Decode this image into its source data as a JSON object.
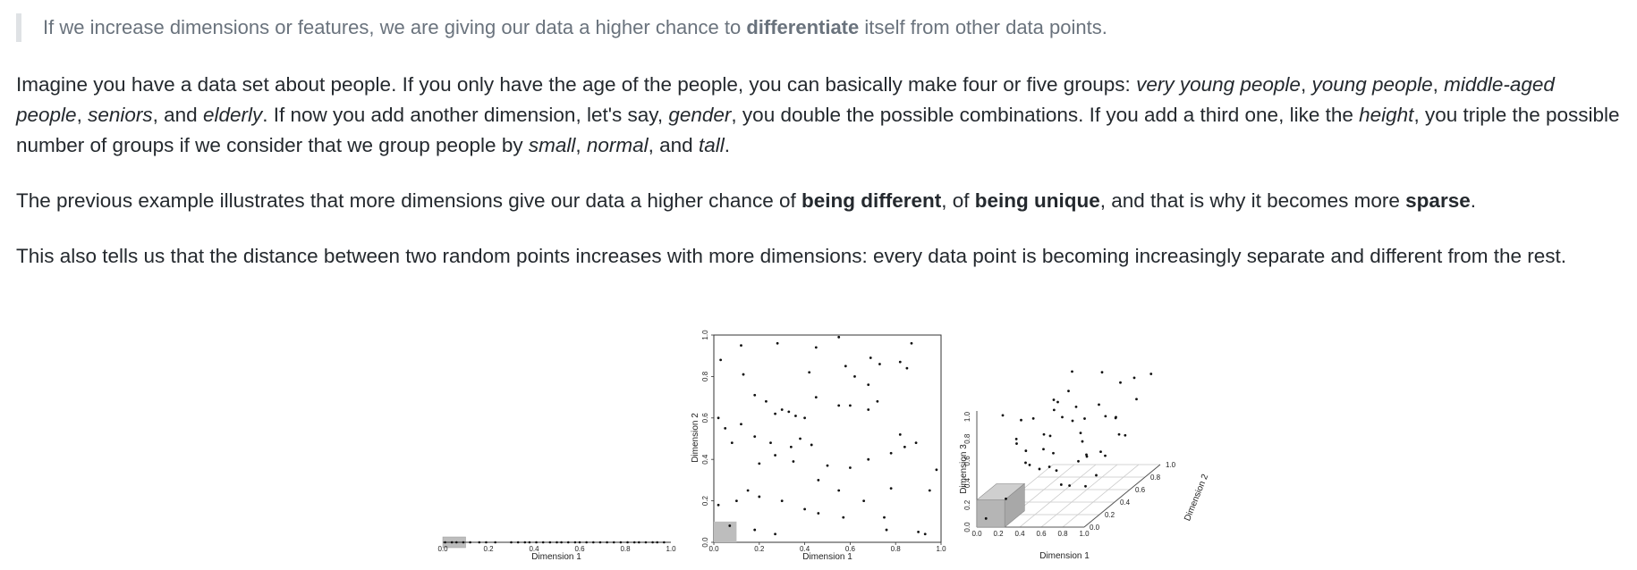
{
  "quote": {
    "before": "If we increase dimensions or features, we are giving our data a higher chance to ",
    "bold": "differentiate",
    "after": " itself from other data points."
  },
  "para1": {
    "t1": "Imagine you have a data set about people. If you only have the age of the people, you can basically make four or five groups: ",
    "i1": "very young people",
    "t2": ", ",
    "i2": "young people",
    "t3": ", ",
    "i3": "middle-aged people",
    "t4": ", ",
    "i4": "seniors",
    "t5": ", and ",
    "i5": "elderly",
    "t6": ". If now you add another dimension, let's say, ",
    "i6": "gender",
    "t7": ", you double the possible combinations. If you add a third one, like the ",
    "i7": "height",
    "t8": ", you triple the possible number of groups if we consider that we group people by ",
    "i8": "small",
    "t9": ", ",
    "i9": "normal",
    "t10": ", and ",
    "i10": "tall",
    "t11": "."
  },
  "para2": {
    "t1": "The previous example illustrates that more dimensions give our data a higher chance of ",
    "b1": "being different",
    "t2": ", of ",
    "b2": "being unique",
    "t3": ", and that is why it becomes more ",
    "b3": "sparse",
    "t4": "."
  },
  "para3": {
    "text": "This also tells us that the distance between two random points increases with more dimensions: every data point is becoming increasingly separate and different from the rest."
  },
  "chart_data": [
    {
      "type": "scatter",
      "xlabel": "Dimension 1",
      "ylabel": "",
      "xlim": [
        0,
        1
      ],
      "xticks": [
        "0.0",
        "0.2",
        "0.4",
        "0.6",
        "0.8",
        "1.0"
      ],
      "highlight": {
        "x": [
          0,
          0.1
        ]
      },
      "x": [
        0.01,
        0.04,
        0.06,
        0.09,
        0.12,
        0.16,
        0.19,
        0.23,
        0.3,
        0.33,
        0.36,
        0.38,
        0.41,
        0.44,
        0.47,
        0.5,
        0.52,
        0.55,
        0.58,
        0.6,
        0.63,
        0.66,
        0.69,
        0.72,
        0.75,
        0.78,
        0.81,
        0.84,
        0.86,
        0.89,
        0.92,
        0.94,
        0.97
      ]
    },
    {
      "type": "scatter",
      "xlabel": "Dimension 1",
      "ylabel": "Dimension 2",
      "xlim": [
        0,
        1
      ],
      "ylim": [
        0,
        1
      ],
      "xticks": [
        "0.0",
        "0.2",
        "0.4",
        "0.6",
        "0.8",
        "1.0"
      ],
      "yticks": [
        "0.0",
        "0.2",
        "0.4",
        "0.6",
        "0.8",
        "1.0"
      ],
      "highlight": {
        "x": [
          0,
          0.1
        ],
        "y": [
          0,
          0.1
        ]
      },
      "points": [
        [
          0.03,
          0.88
        ],
        [
          0.12,
          0.95
        ],
        [
          0.28,
          0.96
        ],
        [
          0.45,
          0.94
        ],
        [
          0.55,
          0.99
        ],
        [
          0.69,
          0.89
        ],
        [
          0.73,
          0.86
        ],
        [
          0.82,
          0.87
        ],
        [
          0.87,
          0.96
        ],
        [
          0.85,
          0.84
        ],
        [
          0.13,
          0.81
        ],
        [
          0.58,
          0.85
        ],
        [
          0.62,
          0.8
        ],
        [
          0.42,
          0.82
        ],
        [
          0.68,
          0.76
        ],
        [
          0.18,
          0.71
        ],
        [
          0.23,
          0.68
        ],
        [
          0.27,
          0.62
        ],
        [
          0.3,
          0.64
        ],
        [
          0.33,
          0.63
        ],
        [
          0.36,
          0.61
        ],
        [
          0.4,
          0.6
        ],
        [
          0.45,
          0.7
        ],
        [
          0.55,
          0.66
        ],
        [
          0.6,
          0.66
        ],
        [
          0.68,
          0.64
        ],
        [
          0.72,
          0.68
        ],
        [
          0.12,
          0.57
        ],
        [
          0.18,
          0.51
        ],
        [
          0.25,
          0.48
        ],
        [
          0.34,
          0.46
        ],
        [
          0.38,
          0.5
        ],
        [
          0.43,
          0.47
        ],
        [
          0.02,
          0.6
        ],
        [
          0.05,
          0.55
        ],
        [
          0.08,
          0.48
        ],
        [
          0.2,
          0.38
        ],
        [
          0.27,
          0.42
        ],
        [
          0.35,
          0.39
        ],
        [
          0.46,
          0.3
        ],
        [
          0.5,
          0.37
        ],
        [
          0.6,
          0.36
        ],
        [
          0.68,
          0.4
        ],
        [
          0.82,
          0.52
        ],
        [
          0.84,
          0.46
        ],
        [
          0.89,
          0.48
        ],
        [
          0.78,
          0.43
        ],
        [
          0.15,
          0.25
        ],
        [
          0.2,
          0.22
        ],
        [
          0.3,
          0.2
        ],
        [
          0.4,
          0.16
        ],
        [
          0.46,
          0.14
        ],
        [
          0.55,
          0.25
        ],
        [
          0.66,
          0.2
        ],
        [
          0.78,
          0.26
        ],
        [
          0.95,
          0.25
        ],
        [
          0.02,
          0.18
        ],
        [
          0.07,
          0.08
        ],
        [
          0.18,
          0.06
        ],
        [
          0.27,
          0.04
        ],
        [
          0.57,
          0.12
        ],
        [
          0.76,
          0.06
        ],
        [
          0.9,
          0.05
        ],
        [
          0.93,
          0.04
        ],
        [
          0.75,
          0.12
        ],
        [
          0.1,
          0.2
        ],
        [
          0.98,
          0.35
        ]
      ]
    },
    {
      "type": "scatter",
      "xlabel": "Dimension 1",
      "ylabel": "Dimension 3",
      "zlabel": "Dimension 2",
      "xticks": [
        "0.0",
        "0.2",
        "0.4",
        "0.6",
        "0.8",
        "1.0"
      ],
      "yticks": [
        "0.0",
        "0.2",
        "0.4",
        "0.6",
        "0.8",
        "1.0"
      ],
      "zticks": [
        "0.0",
        "0.2",
        "0.4",
        "0.6",
        "0.8",
        "1.0"
      ],
      "highlight": {
        "x": [
          0,
          0.1
        ],
        "y": [
          0,
          0.1
        ],
        "z": [
          0,
          0.1
        ]
      },
      "points": [
        [
          0.1,
          0.2,
          0.9
        ],
        [
          0.2,
          0.3,
          0.8
        ],
        [
          0.3,
          0.1,
          0.7
        ],
        [
          0.4,
          0.5,
          0.85
        ],
        [
          0.5,
          0.6,
          0.75
        ],
        [
          0.6,
          0.8,
          0.95
        ],
        [
          0.7,
          0.9,
          0.8
        ],
        [
          0.8,
          0.7,
          0.6
        ],
        [
          0.9,
          0.8,
          0.9
        ],
        [
          0.2,
          0.6,
          0.5
        ],
        [
          0.3,
          0.7,
          0.6
        ],
        [
          0.4,
          0.4,
          0.6
        ],
        [
          0.5,
          0.3,
          0.5
        ],
        [
          0.6,
          0.2,
          0.4
        ],
        [
          0.7,
          0.4,
          0.55
        ],
        [
          0.8,
          0.5,
          0.4
        ],
        [
          0.9,
          0.3,
          0.3
        ],
        [
          0.1,
          0.5,
          0.3
        ],
        [
          0.2,
          0.1,
          0.2
        ],
        [
          0.3,
          0.4,
          0.3
        ],
        [
          0.4,
          0.8,
          0.4
        ],
        [
          0.5,
          0.9,
          0.6
        ],
        [
          0.6,
          0.6,
          0.3
        ],
        [
          0.7,
          0.7,
          0.25
        ],
        [
          0.8,
          0.3,
          0.2
        ],
        [
          0.9,
          0.6,
          0.5
        ],
        [
          0.15,
          0.8,
          0.7
        ],
        [
          0.25,
          0.9,
          0.9
        ],
        [
          0.35,
          0.2,
          0.45
        ],
        [
          0.45,
          0.7,
          0.2
        ],
        [
          0.55,
          0.1,
          0.65
        ],
        [
          0.65,
          0.5,
          0.7
        ],
        [
          0.75,
          0.2,
          0.85
        ],
        [
          0.85,
          0.9,
          0.65
        ],
        [
          0.95,
          0.1,
          0.6
        ],
        [
          0.05,
          0.05,
          0.05
        ],
        [
          0.12,
          0.35,
          0.6
        ],
        [
          0.62,
          0.95,
          0.45
        ],
        [
          0.78,
          0.85,
          0.35
        ],
        [
          0.42,
          0.15,
          0.9
        ],
        [
          0.33,
          0.55,
          0.75
        ],
        [
          0.88,
          0.45,
          0.75
        ],
        [
          0.58,
          0.4,
          0.15
        ],
        [
          0.18,
          0.7,
          0.15
        ],
        [
          0.68,
          0.15,
          0.3
        ],
        [
          0.95,
          0.95,
          0.85
        ],
        [
          0.5,
          0.5,
          0.95
        ],
        [
          0.28,
          0.25,
          0.55
        ]
      ]
    }
  ]
}
